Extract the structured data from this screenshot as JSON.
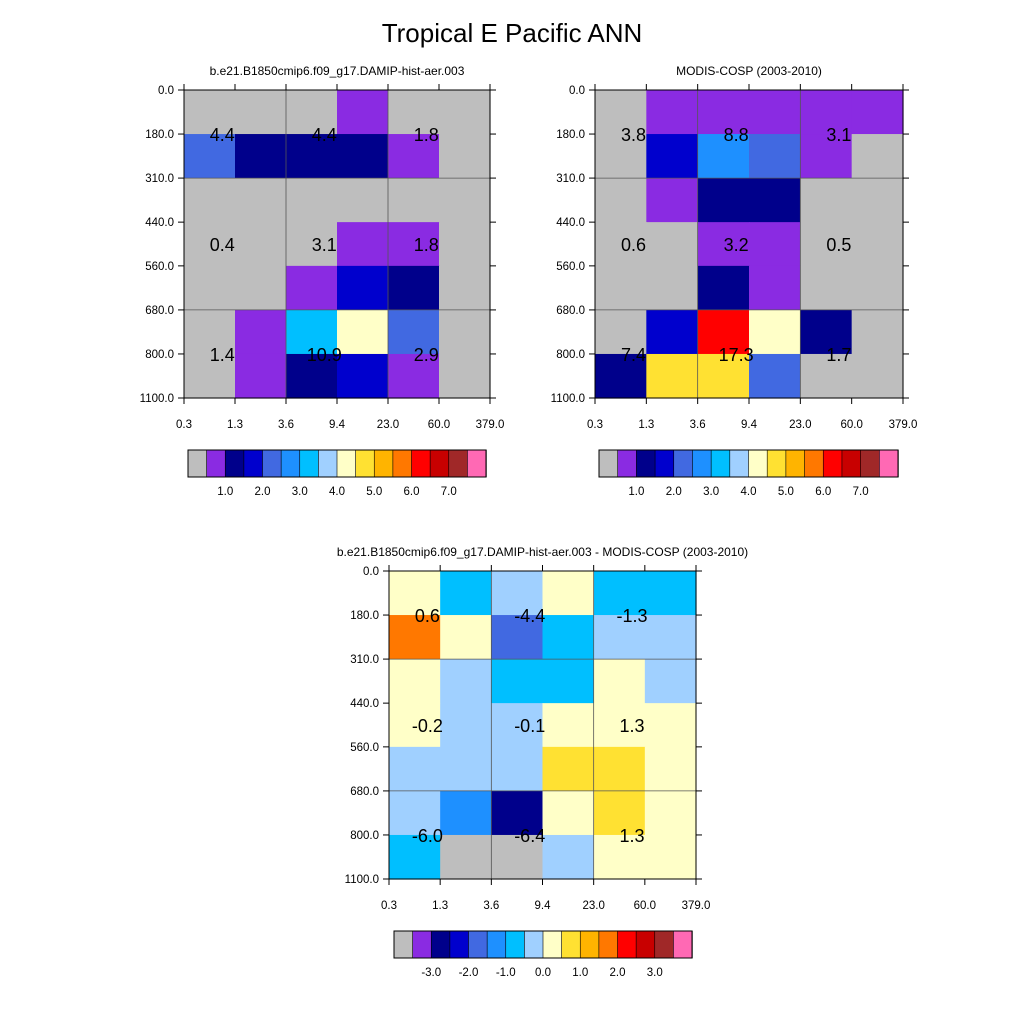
{
  "page": {
    "title": "Tropical E Pacific ANN"
  },
  "colors": {
    "grid": "#555555",
    "palette": [
      "#bebebe",
      "#8a2be2",
      "#00008b",
      "#0000cd",
      "#4169e1",
      "#1e90ff",
      "#00bfff",
      "#a0d0ff",
      "#ffffc8",
      "#ffe132",
      "#ffb400",
      "#ff7800",
      "#ff0000",
      "#c80000",
      "#a02828",
      "#ff69b4"
    ]
  },
  "chart_data": [
    {
      "type": "heatmap",
      "title": "b.e21.B1850cmip6.f09_g17.DAMIP-hist-aer.003",
      "xticks": [
        "0.3",
        "1.3",
        "3.6",
        "9.4",
        "23.0",
        "60.0",
        "379.0"
      ],
      "yticks": [
        "0.0",
        "180.0",
        "310.0",
        "440.0",
        "560.0",
        "680.0",
        "800.0",
        "1100.0"
      ],
      "cells_color_index": [
        [
          0,
          0,
          0,
          1,
          0,
          0
        ],
        [
          4,
          2,
          2,
          2,
          1,
          0
        ],
        [
          0,
          0,
          0,
          0,
          0,
          0
        ],
        [
          0,
          0,
          0,
          1,
          1,
          0
        ],
        [
          0,
          0,
          1,
          3,
          2,
          0
        ],
        [
          0,
          1,
          6,
          8,
          4,
          0
        ],
        [
          0,
          1,
          2,
          3,
          1,
          0
        ]
      ],
      "labels": [
        {
          "row": 1,
          "col": 0.75,
          "text": "4.4"
        },
        {
          "row": 1,
          "col": 2.75,
          "text": "4.4"
        },
        {
          "row": 1,
          "col": 4.75,
          "text": "1.8"
        },
        {
          "row": 3.5,
          "col": 0.75,
          "text": "0.4"
        },
        {
          "row": 3.5,
          "col": 2.75,
          "text": "3.1"
        },
        {
          "row": 3.5,
          "col": 4.75,
          "text": "1.8"
        },
        {
          "row": 6,
          "col": 0.75,
          "text": "1.4"
        },
        {
          "row": 6,
          "col": 2.75,
          "text": "10.9"
        },
        {
          "row": 6,
          "col": 4.75,
          "text": "2.9"
        }
      ],
      "colorbar_labels": [
        "1.0",
        "2.0",
        "3.0",
        "4.0",
        "5.0",
        "6.0",
        "7.0"
      ]
    },
    {
      "type": "heatmap",
      "title": "MODIS-COSP (2003-2010)",
      "xticks": [
        "0.3",
        "1.3",
        "3.6",
        "9.4",
        "23.0",
        "60.0",
        "379.0"
      ],
      "yticks": [
        "0.0",
        "180.0",
        "310.0",
        "440.0",
        "560.0",
        "680.0",
        "800.0",
        "1100.0"
      ],
      "cells_color_index": [
        [
          0,
          1,
          1,
          1,
          1,
          1
        ],
        [
          0,
          3,
          5,
          4,
          1,
          0
        ],
        [
          0,
          1,
          2,
          2,
          0,
          0
        ],
        [
          0,
          0,
          1,
          1,
          0,
          0
        ],
        [
          0,
          0,
          2,
          1,
          0,
          0
        ],
        [
          0,
          3,
          12,
          8,
          2,
          0
        ],
        [
          2,
          9,
          9,
          4,
          0,
          0
        ]
      ],
      "labels": [
        {
          "row": 1,
          "col": 0.75,
          "text": "3.8"
        },
        {
          "row": 1,
          "col": 2.75,
          "text": "8.8"
        },
        {
          "row": 1,
          "col": 4.75,
          "text": "3.1"
        },
        {
          "row": 3.5,
          "col": 0.75,
          "text": "0.6"
        },
        {
          "row": 3.5,
          "col": 2.75,
          "text": "3.2"
        },
        {
          "row": 3.5,
          "col": 4.75,
          "text": "0.5"
        },
        {
          "row": 6,
          "col": 0.75,
          "text": "7.4"
        },
        {
          "row": 6,
          "col": 2.75,
          "text": "17.3"
        },
        {
          "row": 6,
          "col": 4.75,
          "text": "1.7"
        }
      ],
      "colorbar_labels": [
        "1.0",
        "2.0",
        "3.0",
        "4.0",
        "5.0",
        "6.0",
        "7.0"
      ]
    },
    {
      "type": "heatmap",
      "title": "b.e21.B1850cmip6.f09_g17.DAMIP-hist-aer.003 - MODIS-COSP (2003-2010)",
      "xticks": [
        "0.3",
        "1.3",
        "3.6",
        "9.4",
        "23.0",
        "60.0",
        "379.0"
      ],
      "yticks": [
        "0.0",
        "180.0",
        "310.0",
        "440.0",
        "560.0",
        "680.0",
        "800.0",
        "1100.0"
      ],
      "cells_color_index": [
        [
          8,
          6,
          7,
          8,
          6,
          6
        ],
        [
          11,
          8,
          4,
          6,
          7,
          7
        ],
        [
          8,
          7,
          6,
          6,
          8,
          7
        ],
        [
          8,
          7,
          7,
          8,
          8,
          8
        ],
        [
          7,
          7,
          7,
          9,
          9,
          8
        ],
        [
          7,
          5,
          2,
          8,
          9,
          8
        ],
        [
          6,
          0,
          0,
          7,
          8,
          8
        ]
      ],
      "labels": [
        {
          "row": 1,
          "col": 0.75,
          "text": "0.6"
        },
        {
          "row": 1,
          "col": 2.75,
          "text": "-4.4"
        },
        {
          "row": 1,
          "col": 4.75,
          "text": "-1.3"
        },
        {
          "row": 3.5,
          "col": 0.75,
          "text": "-0.2"
        },
        {
          "row": 3.5,
          "col": 2.75,
          "text": "-0.1"
        },
        {
          "row": 3.5,
          "col": 4.75,
          "text": "1.3"
        },
        {
          "row": 6,
          "col": 0.75,
          "text": "-6.0"
        },
        {
          "row": 6,
          "col": 2.75,
          "text": "-6.4"
        },
        {
          "row": 6,
          "col": 4.75,
          "text": "1.3"
        }
      ],
      "colorbar_labels": [
        "-3.0",
        "-2.0",
        "-1.0",
        "0.0",
        "1.0",
        "2.0",
        "3.0"
      ]
    }
  ]
}
